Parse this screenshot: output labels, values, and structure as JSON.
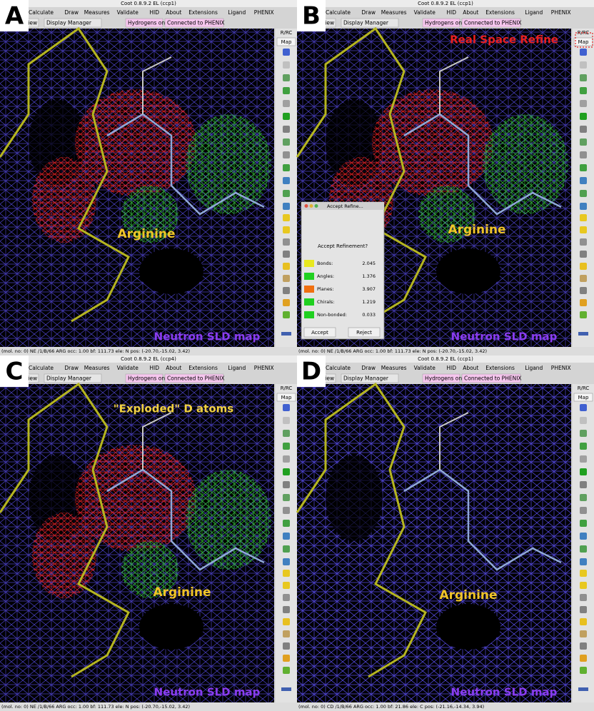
{
  "menu": [
    "Calculate",
    "Draw",
    "Measures",
    "Validate",
    "HID",
    "About",
    "Extensions",
    "Ligand",
    "PHENIX"
  ],
  "toolbar": {
    "reset_view": "Reset View",
    "display_manager": "Display Manager",
    "hydrogens": "Hydrogens on",
    "phenix": "Connected to PHENIX"
  },
  "side_toolbar": {
    "rrc": "R/RC",
    "map": "Map"
  },
  "panels": [
    {
      "letter": "A",
      "window_title": "Coot 0.8.9.2 EL (ccp1)",
      "residue_label": "Arginine",
      "map_label": "Neutron SLD map",
      "status": "(mol. no: 0) NE /1/B/66 ARG occ: 1.00 bf: 111.73 ele: N pos: (-20.70,-15.02, 3.42)"
    },
    {
      "letter": "B",
      "window_title": "Coot 0.8.9.2 EL (ccp1)",
      "residue_label": "Arginine",
      "map_label": "Neutron SLD map",
      "annotation": "Real Space Refine",
      "status": "(mol. no: 0) NE /1/B/66 ARG occ: 1.00 bf: 111.73 ele: N pos: (-20.70,-15.02, 3.42)",
      "dialog": {
        "title": "Accept Refine...",
        "heading": "Accept Refinement?",
        "rows": [
          {
            "label": "Bonds:",
            "value": 2.045,
            "color": "#e8e820"
          },
          {
            "label": "Angles:",
            "value": 1.376,
            "color": "#20d020"
          },
          {
            "label": "Planes:",
            "value": 3.907,
            "color": "#f07010"
          },
          {
            "label": "Chirals:",
            "value": 1.219,
            "color": "#20d020"
          },
          {
            "label": "Non-bonded:",
            "value": 0.033,
            "color": "#20d020"
          }
        ],
        "accept": "Accept",
        "reject": "Reject"
      }
    },
    {
      "letter": "C",
      "window_title": "Coot 0.8.9.2 EL (ccp4)",
      "residue_label": "Arginine",
      "map_label": "Neutron SLD map",
      "annotation": "\"Exploded\" D atoms",
      "status": "(mol. no: 0) NE /1/B/66 ARG occ: 1.00 bf: 111.73 ele: N pos: (-20.70,-15.02, 3.42)"
    },
    {
      "letter": "D",
      "window_title": "Coot 0.8.9.2 EL (ccp1)",
      "residue_label": "Arginine",
      "map_label": "Neutron SLD map",
      "status": "(mol. no: 0) CD /1/B/66 ARG occ: 1.00 bf: 21.86 ele: C pos: (-21.16,-14.34, 3.94)"
    }
  ]
}
